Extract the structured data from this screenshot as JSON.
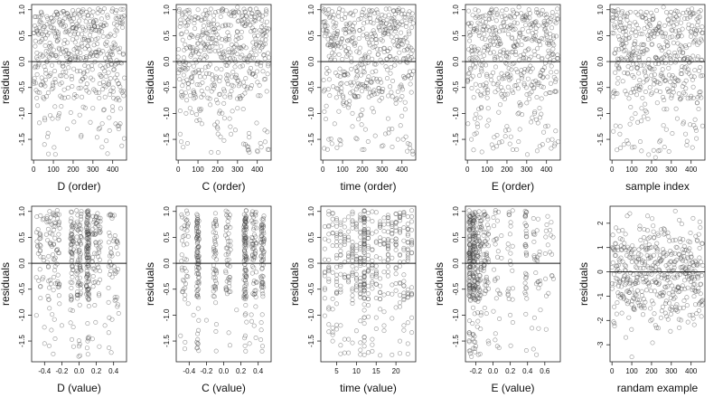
{
  "chart_data": [
    {
      "type": "scatter",
      "xlabel": "D (order)",
      "ylabel": "residuals",
      "xlim": [
        -10,
        470
      ],
      "ylim": [
        -1.9,
        1.1
      ],
      "xticks": [
        0,
        100,
        200,
        300,
        400
      ],
      "xtick_labels": [
        "0",
        "100",
        "200",
        "300",
        "400"
      ],
      "yticks": [
        -1.5,
        -1.0,
        -0.5,
        0.0,
        0.5,
        1.0
      ],
      "ytick_labels": [
        "-1.5",
        "-1.0",
        "-0.5",
        "0.0",
        "0.5",
        "1.0"
      ],
      "hline": 0,
      "x_gen": "index",
      "seed": 11,
      "n": 460,
      "spec": "main",
      "points": [
        [
          15,
          0.58
        ],
        [
          40,
          0.75
        ],
        [
          60,
          0.45
        ],
        [
          90,
          0.3
        ],
        [
          120,
          0.9
        ],
        [
          150,
          -0.2
        ],
        [
          180,
          0.6
        ],
        [
          210,
          0.1
        ],
        [
          250,
          1.0
        ],
        [
          280,
          0.4
        ],
        [
          310,
          0.8
        ],
        [
          350,
          0.2
        ],
        [
          380,
          -0.4
        ],
        [
          420,
          0.7
        ],
        [
          30,
          -0.6
        ],
        [
          55,
          -1.6
        ],
        [
          70,
          -1.45
        ],
        [
          95,
          -1.1
        ],
        [
          130,
          -1.0
        ],
        [
          170,
          -1.3
        ],
        [
          205,
          -0.7
        ],
        [
          240,
          -1.45
        ],
        [
          300,
          -0.9
        ],
        [
          330,
          -0.6
        ],
        [
          400,
          -0.95
        ],
        [
          415,
          -1.2
        ],
        [
          430,
          -1.3
        ],
        [
          20,
          -0.85
        ],
        [
          110,
          -0.4
        ],
        [
          260,
          -0.3
        ]
      ],
      "grid": false
    },
    {
      "type": "scatter",
      "xlabel": "C (order)",
      "ylabel": "residuals",
      "xlim": [
        -10,
        470
      ],
      "ylim": [
        -1.9,
        1.1
      ],
      "xticks": [
        0,
        100,
        200,
        300,
        400
      ],
      "xtick_labels": [
        "0",
        "100",
        "200",
        "300",
        "400"
      ],
      "yticks": [
        -1.5,
        -1.0,
        -0.5,
        0.0,
        0.5,
        1.0
      ],
      "ytick_labels": [
        "-1.5",
        "-1.0",
        "-0.5",
        "0.0",
        "0.5",
        "1.0"
      ],
      "hline": 0,
      "x_gen": "index",
      "seed": 23,
      "n": 460,
      "spec": "main",
      "points": [
        [
          10,
          -1.4
        ],
        [
          25,
          -1.65
        ],
        [
          40,
          -1.0
        ],
        [
          60,
          -0.9
        ],
        [
          80,
          -0.6
        ],
        [
          120,
          -1.2
        ],
        [
          150,
          -0.7
        ],
        [
          200,
          -0.8
        ],
        [
          260,
          -1.1
        ],
        [
          300,
          -0.9
        ],
        [
          340,
          -1.6
        ],
        [
          360,
          -1.75
        ],
        [
          440,
          -1.55
        ],
        [
          20,
          0.9
        ],
        [
          100,
          1.0
        ],
        [
          180,
          0.8
        ],
        [
          300,
          1.05
        ],
        [
          400,
          0.95
        ],
        [
          70,
          -0.3
        ],
        [
          330,
          -0.4
        ]
      ],
      "grid": false
    },
    {
      "type": "scatter",
      "xlabel": "time (order)",
      "ylabel": "residuals",
      "xlim": [
        -10,
        470
      ],
      "ylim": [
        -1.9,
        1.1
      ],
      "xticks": [
        0,
        100,
        200,
        300,
        400
      ],
      "xtick_labels": [
        "0",
        "100",
        "200",
        "300",
        "400"
      ],
      "yticks": [
        -1.5,
        -1.0,
        -0.5,
        0.0,
        0.5,
        1.0
      ],
      "ytick_labels": [
        "-1.5",
        "-1.0",
        "-0.5",
        "0.0",
        "0.5",
        "1.0"
      ],
      "hline": 0,
      "x_gen": "index",
      "seed": 37,
      "n": 460,
      "spec": "main",
      "points": [
        [
          30,
          -1.5
        ],
        [
          60,
          -1.2
        ],
        [
          90,
          -1.6
        ],
        [
          120,
          -0.8
        ],
        [
          150,
          -1.0
        ],
        [
          200,
          -1.7
        ],
        [
          250,
          -0.9
        ],
        [
          330,
          -1.1
        ],
        [
          350,
          -1.3
        ],
        [
          380,
          -1.5
        ],
        [
          400,
          -1.05
        ],
        [
          420,
          -1.45
        ],
        [
          440,
          -1.6
        ],
        [
          10,
          1.0
        ],
        [
          200,
          0.95
        ],
        [
          300,
          0.9
        ]
      ],
      "grid": false
    },
    {
      "type": "scatter",
      "xlabel": "E (order)",
      "ylabel": "residuals",
      "xlim": [
        -10,
        470
      ],
      "ylim": [
        -1.9,
        1.1
      ],
      "xticks": [
        0,
        100,
        200,
        300,
        400
      ],
      "xtick_labels": [
        "0",
        "100",
        "200",
        "300",
        "400"
      ],
      "yticks": [
        -1.5,
        -1.0,
        -0.5,
        0.0,
        0.5,
        1.0
      ],
      "ytick_labels": [
        "-1.5",
        "-1.0",
        "-0.5",
        "0.0",
        "0.5",
        "1.0"
      ],
      "hline": 0,
      "x_gen": "index",
      "seed": 41,
      "n": 460,
      "spec": "main",
      "points": [
        [
          20,
          -1.5
        ],
        [
          50,
          -1.2
        ],
        [
          70,
          -0.9
        ],
        [
          100,
          -0.7
        ],
        [
          200,
          -1.25
        ],
        [
          220,
          -1.45
        ],
        [
          230,
          -1.7
        ],
        [
          300,
          -0.8
        ],
        [
          340,
          -1.0
        ],
        [
          380,
          -1.6
        ],
        [
          420,
          -0.6
        ],
        [
          40,
          1.0
        ],
        [
          150,
          0.9
        ],
        [
          260,
          1.05
        ],
        [
          350,
          0.95
        ]
      ],
      "grid": false
    },
    {
      "type": "scatter",
      "xlabel": "sample index",
      "ylabel": "residuals",
      "xlim": [
        -10,
        470
      ],
      "ylim": [
        -1.9,
        1.1
      ],
      "xticks": [
        0,
        100,
        200,
        300,
        400
      ],
      "xtick_labels": [
        "0",
        "100",
        "200",
        "300",
        "400"
      ],
      "yticks": [
        -1.5,
        -1.0,
        -0.5,
        0.0,
        0.5,
        1.0
      ],
      "ytick_labels": [
        "-1.5",
        "-1.0",
        "-0.5",
        "0.0",
        "0.5",
        "1.0"
      ],
      "hline": 0,
      "x_gen": "index",
      "seed": 53,
      "n": 460,
      "spec": "main",
      "points": [
        [
          40,
          -1.4
        ],
        [
          60,
          -1.6
        ],
        [
          100,
          -1.1
        ],
        [
          150,
          -0.9
        ],
        [
          220,
          -1.85
        ],
        [
          240,
          -1.55
        ],
        [
          300,
          -0.7
        ],
        [
          330,
          -1.1
        ],
        [
          360,
          -1.2
        ],
        [
          430,
          -0.8
        ],
        [
          30,
          1.0
        ],
        [
          120,
          0.95
        ],
        [
          260,
          1.05
        ],
        [
          400,
          0.9
        ]
      ],
      "grid": false
    },
    {
      "type": "scatter",
      "xlabel": "D (value)",
      "ylabel": "residuals",
      "xlim": [
        -0.55,
        0.55
      ],
      "ylim": [
        -1.9,
        1.1
      ],
      "xticks": [
        -0.4,
        -0.2,
        0.0,
        0.2,
        0.4
      ],
      "xtick_labels": [
        "-0.4",
        "-0.2",
        "0.0",
        "0.2",
        "0.4"
      ],
      "yticks": [
        -1.5,
        -1.0,
        -0.5,
        0.0,
        0.5,
        1.0
      ],
      "ytick_labels": [
        "-1.5",
        "-1.0",
        "-0.5",
        "0.0",
        "0.5",
        "1.0"
      ],
      "hline": 0,
      "x_gen": "cluster",
      "seed": 67,
      "n": 460,
      "spec": "main",
      "clusters": [
        [
          0.1,
          1.2,
          0.015
        ],
        [
          -0.08,
          0.6,
          0.02
        ],
        [
          0.0,
          0.7,
          0.03
        ],
        [
          0.2,
          0.5,
          0.05
        ],
        [
          -0.3,
          0.6,
          0.08
        ],
        [
          0.4,
          0.4,
          0.06
        ],
        [
          -0.45,
          0.3,
          0.05
        ]
      ],
      "points": [
        [
          -0.4,
          -1.55
        ],
        [
          -0.3,
          -1.75
        ],
        [
          -0.2,
          -1.2
        ],
        [
          0.0,
          -1.6
        ],
        [
          0.1,
          -1.5
        ],
        [
          0.3,
          -1.2
        ],
        [
          0.35,
          -1.05
        ],
        [
          0.45,
          -0.8
        ],
        [
          -0.1,
          -0.9
        ],
        [
          0.1,
          0.5
        ],
        [
          0.1,
          0.6
        ],
        [
          0.1,
          0.4
        ]
      ],
      "grid": false
    },
    {
      "type": "scatter",
      "xlabel": "C (value)",
      "ylabel": "residuals",
      "xlim": [
        -0.55,
        0.55
      ],
      "ylim": [
        -1.9,
        1.1
      ],
      "xticks": [
        -0.4,
        -0.2,
        0.0,
        0.2,
        0.4
      ],
      "xtick_labels": [
        "-0.4",
        "-0.2",
        "0.0",
        "0.2",
        "0.4"
      ],
      "yticks": [
        -1.5,
        -1.0,
        -0.5,
        0.0,
        0.5,
        1.0
      ],
      "ytick_labels": [
        "-1.5",
        "-1.0",
        "-0.5",
        "0.0",
        "0.5",
        "1.0"
      ],
      "hline": 0,
      "x_gen": "cluster",
      "seed": 71,
      "n": 460,
      "spec": "main",
      "clusters": [
        [
          0.25,
          1.2,
          0.015
        ],
        [
          -0.3,
          1.0,
          0.015
        ],
        [
          0.45,
          0.8,
          0.02
        ],
        [
          -0.1,
          0.5,
          0.02
        ],
        [
          0.05,
          0.5,
          0.03
        ],
        [
          -0.45,
          0.5,
          0.04
        ],
        [
          0.35,
          0.6,
          0.03
        ]
      ],
      "points": [
        [
          -0.5,
          -1.4
        ],
        [
          -0.45,
          -1.65
        ],
        [
          -0.35,
          -1.0
        ],
        [
          0.25,
          -1.4
        ],
        [
          0.3,
          -1.55
        ],
        [
          0.45,
          -1.6
        ],
        [
          0.15,
          -0.9
        ],
        [
          -0.2,
          -1.1
        ]
      ],
      "grid": false
    },
    {
      "type": "scatter",
      "xlabel": "time (value)",
      "ylabel": "residuals",
      "xlim": [
        1,
        25
      ],
      "ylim": [
        -1.9,
        1.1
      ],
      "xticks": [
        5,
        10,
        15,
        20
      ],
      "xtick_labels": [
        "5",
        "10",
        "15",
        "20"
      ],
      "yticks": [
        -1.5,
        -1.0,
        -0.5,
        0.0,
        0.5,
        1.0
      ],
      "ytick_labels": [
        "-1.5",
        "-1.0",
        "-0.5",
        "0.0",
        "0.5",
        "1.0"
      ],
      "hline": 0,
      "x_gen": "grid",
      "xgrid": [
        2,
        3,
        4,
        5,
        6,
        7,
        8,
        9,
        10,
        11,
        12,
        13,
        14,
        15,
        16,
        17,
        18,
        19,
        20,
        21,
        22,
        23,
        24
      ],
      "spine": 12,
      "seed": 83,
      "n": 460,
      "spec": "main",
      "points": [
        [
          4,
          -1.5
        ],
        [
          6,
          -1.2
        ],
        [
          12,
          -1.6
        ],
        [
          17,
          -1.3
        ],
        [
          21,
          -1.5
        ],
        [
          22,
          -1.2
        ],
        [
          23,
          -1.75
        ],
        [
          24,
          -1.05
        ],
        [
          3,
          1.0
        ],
        [
          20,
          0.95
        ],
        [
          24,
          0.9
        ]
      ],
      "grid": false
    },
    {
      "type": "scatter",
      "xlabel": "E (value)",
      "ylabel": "residuals",
      "xlim": [
        -0.32,
        0.78
      ],
      "ylim": [
        -1.9,
        1.1
      ],
      "xticks": [
        -0.2,
        0.0,
        0.2,
        0.4,
        0.6
      ],
      "xtick_labels": [
        "-0.2",
        "0.0",
        "0.2",
        "0.4",
        "0.6"
      ],
      "yticks": [
        -1.5,
        -1.0,
        -0.5,
        0.0,
        0.5,
        1.0
      ],
      "ytick_labels": [
        "-1.5",
        "-1.0",
        "-0.5",
        "0.0",
        "0.5",
        "1.0"
      ],
      "hline": 0,
      "x_gen": "cluster",
      "seed": 97,
      "n": 460,
      "spec": "main",
      "clusters": [
        [
          -0.27,
          1.0,
          0.01
        ],
        [
          -0.22,
          1.0,
          0.02
        ],
        [
          -0.16,
          0.8,
          0.03
        ],
        [
          -0.08,
          0.5,
          0.03
        ],
        [
          0.05,
          0.4,
          0.05
        ],
        [
          0.2,
          0.3,
          0.03
        ],
        [
          0.38,
          0.4,
          0.01
        ],
        [
          0.5,
          0.3,
          0.05
        ],
        [
          0.65,
          0.2,
          0.05
        ]
      ],
      "points": [
        [
          -0.25,
          -1.8
        ],
        [
          -0.2,
          -1.6
        ],
        [
          -0.15,
          -1.75
        ],
        [
          -0.05,
          -1.55
        ],
        [
          0.05,
          -1.6
        ],
        [
          0.2,
          -1.0
        ],
        [
          0.38,
          -0.6
        ],
        [
          0.55,
          -0.9
        ],
        [
          0.7,
          -0.3
        ]
      ],
      "grid": false
    },
    {
      "type": "scatter",
      "xlabel": "randam example",
      "ylabel": "residuals",
      "xlim": [
        -10,
        470
      ],
      "ylim": [
        -3.7,
        2.7
      ],
      "xticks": [
        0,
        100,
        200,
        300,
        400
      ],
      "xtick_labels": [
        "0",
        "100",
        "200",
        "300",
        "400"
      ],
      "yticks": [
        -3,
        -2,
        -1,
        0,
        1,
        2
      ],
      "ytick_labels": [
        "-3",
        "-2",
        "-1",
        "0",
        "1",
        "2"
      ],
      "hline": 0,
      "x_gen": "index",
      "seed": 101,
      "n": 460,
      "spec": "normal",
      "points": [
        [
          100,
          -3.5
        ],
        [
          70,
          -2.7
        ],
        [
          220,
          -2.2
        ],
        [
          340,
          -2.3
        ],
        [
          90,
          2.4
        ],
        [
          180,
          2.3
        ],
        [
          320,
          2.5
        ],
        [
          410,
          2.2
        ]
      ],
      "grid": false
    }
  ]
}
